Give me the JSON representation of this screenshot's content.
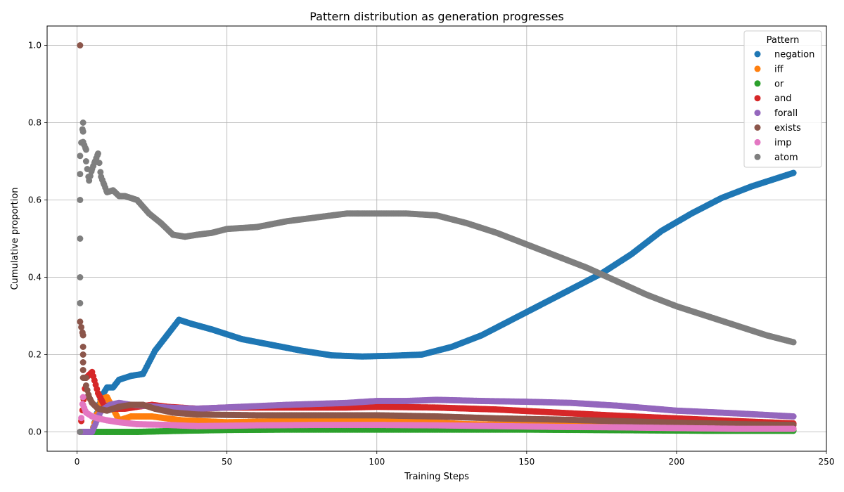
{
  "chart_data": {
    "type": "scatter",
    "title": "Pattern distribution as generation progresses",
    "xlabel": "Training Steps",
    "ylabel": "Cumulative proportion",
    "xlim": [
      -10,
      250
    ],
    "ylim": [
      -0.05,
      1.05
    ],
    "xticks": [
      0,
      50,
      100,
      150,
      200,
      250
    ],
    "yticks": [
      0.0,
      0.2,
      0.4,
      0.6,
      0.8,
      1.0
    ],
    "xtick_labels": [
      "0",
      "50",
      "100",
      "150",
      "200",
      "250"
    ],
    "ytick_labels": [
      "0.0",
      "0.2",
      "0.4",
      "0.6",
      "0.8",
      "1.0"
    ],
    "grid": true,
    "legend": {
      "title": "Pattern",
      "placement": "top-right"
    },
    "series": [
      {
        "name": "negation",
        "color": "#1f77b4",
        "points": [
          [
            1,
            0.0
          ],
          [
            3,
            0.0
          ],
          [
            5,
            0.0
          ],
          [
            8,
            0.09
          ],
          [
            10,
            0.115
          ],
          [
            12,
            0.115
          ],
          [
            14,
            0.135
          ],
          [
            18,
            0.145
          ],
          [
            22,
            0.15
          ],
          [
            26,
            0.21
          ],
          [
            30,
            0.25
          ],
          [
            34,
            0.29
          ],
          [
            38,
            0.28
          ],
          [
            45,
            0.265
          ],
          [
            55,
            0.24
          ],
          [
            65,
            0.225
          ],
          [
            75,
            0.21
          ],
          [
            85,
            0.198
          ],
          [
            95,
            0.195
          ],
          [
            105,
            0.197
          ],
          [
            115,
            0.2
          ],
          [
            125,
            0.22
          ],
          [
            135,
            0.25
          ],
          [
            145,
            0.29
          ],
          [
            155,
            0.33
          ],
          [
            165,
            0.37
          ],
          [
            175,
            0.41
          ],
          [
            185,
            0.46
          ],
          [
            195,
            0.52
          ],
          [
            205,
            0.565
          ],
          [
            215,
            0.605
          ],
          [
            225,
            0.635
          ],
          [
            235,
            0.66
          ],
          [
            239,
            0.67
          ]
        ]
      },
      {
        "name": "iff",
        "color": "#ff7f0e",
        "points": [
          [
            1,
            0.0
          ],
          [
            5,
            0.0
          ],
          [
            8,
            0.085
          ],
          [
            10,
            0.09
          ],
          [
            14,
            0.03
          ],
          [
            18,
            0.04
          ],
          [
            25,
            0.04
          ],
          [
            35,
            0.03
          ],
          [
            50,
            0.025
          ],
          [
            70,
            0.028
          ],
          [
            90,
            0.03
          ],
          [
            110,
            0.028
          ],
          [
            130,
            0.02
          ],
          [
            150,
            0.018
          ],
          [
            170,
            0.015
          ],
          [
            190,
            0.012
          ],
          [
            210,
            0.01
          ],
          [
            239,
            0.008
          ]
        ]
      },
      {
        "name": "or",
        "color": "#2ca02c",
        "points": [
          [
            1,
            0.0
          ],
          [
            5,
            0.0
          ],
          [
            10,
            0.0
          ],
          [
            20,
            0.0
          ],
          [
            35,
            0.003
          ],
          [
            50,
            0.005
          ],
          [
            70,
            0.006
          ],
          [
            90,
            0.006
          ],
          [
            110,
            0.006
          ],
          [
            130,
            0.006
          ],
          [
            150,
            0.006
          ],
          [
            170,
            0.005
          ],
          [
            190,
            0.004
          ],
          [
            210,
            0.003
          ],
          [
            239,
            0.003
          ]
        ]
      },
      {
        "name": "and",
        "color": "#d62728",
        "points": [
          [
            1,
            0.0
          ],
          [
            3,
            0.14
          ],
          [
            5,
            0.155
          ],
          [
            7,
            0.1
          ],
          [
            9,
            0.07
          ],
          [
            12,
            0.06
          ],
          [
            16,
            0.06
          ],
          [
            20,
            0.065
          ],
          [
            25,
            0.07
          ],
          [
            30,
            0.065
          ],
          [
            40,
            0.06
          ],
          [
            50,
            0.063
          ],
          [
            70,
            0.063
          ],
          [
            90,
            0.063
          ],
          [
            100,
            0.065
          ],
          [
            120,
            0.063
          ],
          [
            140,
            0.058
          ],
          [
            160,
            0.05
          ],
          [
            180,
            0.042
          ],
          [
            200,
            0.035
          ],
          [
            220,
            0.028
          ],
          [
            239,
            0.022
          ]
        ]
      },
      {
        "name": "forall",
        "color": "#9467bd",
        "points": [
          [
            1,
            0.0
          ],
          [
            5,
            0.0
          ],
          [
            8,
            0.055
          ],
          [
            11,
            0.07
          ],
          [
            14,
            0.075
          ],
          [
            18,
            0.07
          ],
          [
            22,
            0.068
          ],
          [
            30,
            0.063
          ],
          [
            40,
            0.06
          ],
          [
            55,
            0.065
          ],
          [
            70,
            0.07
          ],
          [
            90,
            0.075
          ],
          [
            100,
            0.08
          ],
          [
            110,
            0.08
          ],
          [
            120,
            0.083
          ],
          [
            135,
            0.08
          ],
          [
            150,
            0.078
          ],
          [
            165,
            0.075
          ],
          [
            180,
            0.068
          ],
          [
            200,
            0.055
          ],
          [
            220,
            0.048
          ],
          [
            239,
            0.04
          ]
        ]
      },
      {
        "name": "exists",
        "color": "#8c564b",
        "points": [
          [
            1,
            1.0
          ],
          [
            1,
            0.285
          ],
          [
            2,
            0.25
          ],
          [
            2,
            0.22
          ],
          [
            2,
            0.2
          ],
          [
            2,
            0.18
          ],
          [
            2,
            0.16
          ],
          [
            2,
            0.14
          ],
          [
            3,
            0.14
          ],
          [
            3,
            0.12
          ],
          [
            4,
            0.09
          ],
          [
            5,
            0.075
          ],
          [
            7,
            0.06
          ],
          [
            10,
            0.055
          ],
          [
            14,
            0.065
          ],
          [
            18,
            0.07
          ],
          [
            22,
            0.07
          ],
          [
            26,
            0.06
          ],
          [
            32,
            0.05
          ],
          [
            40,
            0.045
          ],
          [
            60,
            0.043
          ],
          [
            80,
            0.043
          ],
          [
            100,
            0.043
          ],
          [
            120,
            0.04
          ],
          [
            140,
            0.035
          ],
          [
            160,
            0.032
          ],
          [
            180,
            0.028
          ],
          [
            200,
            0.024
          ],
          [
            220,
            0.02
          ],
          [
            239,
            0.018
          ]
        ]
      },
      {
        "name": "imp",
        "color": "#e377c2",
        "points": [
          [
            1,
            0.0
          ],
          [
            2,
            0.09
          ],
          [
            2,
            0.07
          ],
          [
            3,
            0.05
          ],
          [
            4,
            0.045
          ],
          [
            5,
            0.04
          ],
          [
            7,
            0.035
          ],
          [
            10,
            0.03
          ],
          [
            14,
            0.025
          ],
          [
            20,
            0.02
          ],
          [
            30,
            0.018
          ],
          [
            40,
            0.015
          ],
          [
            60,
            0.017
          ],
          [
            80,
            0.018
          ],
          [
            100,
            0.018
          ],
          [
            120,
            0.017
          ],
          [
            140,
            0.015
          ],
          [
            160,
            0.013
          ],
          [
            180,
            0.012
          ],
          [
            200,
            0.01
          ],
          [
            220,
            0.008
          ],
          [
            239,
            0.008
          ]
        ]
      },
      {
        "name": "atom",
        "color": "#7f7f7f",
        "points": [
          [
            1,
            0.0
          ],
          [
            1,
            0.333
          ],
          [
            1,
            0.4
          ],
          [
            1,
            0.5
          ],
          [
            1,
            0.6
          ],
          [
            1,
            0.667
          ],
          [
            1,
            0.714
          ],
          [
            2,
            0.8
          ],
          [
            2,
            0.777
          ],
          [
            2,
            0.75
          ],
          [
            3,
            0.73
          ],
          [
            3,
            0.7
          ],
          [
            4,
            0.65
          ],
          [
            5,
            0.68
          ],
          [
            6,
            0.7
          ],
          [
            7,
            0.72
          ],
          [
            8,
            0.66
          ],
          [
            9,
            0.64
          ],
          [
            10,
            0.62
          ],
          [
            12,
            0.625
          ],
          [
            14,
            0.61
          ],
          [
            16,
            0.61
          ],
          [
            20,
            0.6
          ],
          [
            24,
            0.565
          ],
          [
            28,
            0.54
          ],
          [
            32,
            0.51
          ],
          [
            36,
            0.505
          ],
          [
            40,
            0.51
          ],
          [
            45,
            0.515
          ],
          [
            50,
            0.525
          ],
          [
            60,
            0.53
          ],
          [
            70,
            0.545
          ],
          [
            80,
            0.555
          ],
          [
            90,
            0.565
          ],
          [
            100,
            0.565
          ],
          [
            110,
            0.565
          ],
          [
            120,
            0.56
          ],
          [
            130,
            0.54
          ],
          [
            140,
            0.515
          ],
          [
            150,
            0.485
          ],
          [
            160,
            0.455
          ],
          [
            170,
            0.425
          ],
          [
            180,
            0.39
          ],
          [
            190,
            0.355
          ],
          [
            200,
            0.325
          ],
          [
            210,
            0.3
          ],
          [
            220,
            0.275
          ],
          [
            230,
            0.25
          ],
          [
            239,
            0.232
          ]
        ]
      }
    ]
  }
}
